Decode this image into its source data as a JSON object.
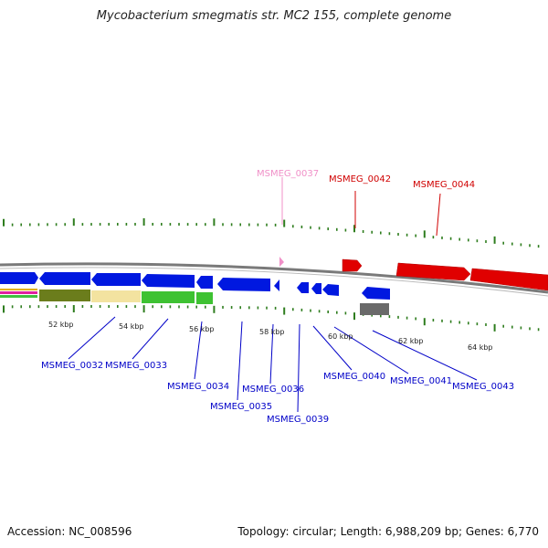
{
  "title": "Mycobacterium smegmatis str. MC2 155, complete genome",
  "footer": {
    "accession": "Accession: NC_008596",
    "summary": "Topology: circular; Length: 6,988,209 bp; Genes: 6,770"
  },
  "colors": {
    "backbone": "#7a7a7a",
    "tick": "#2e7d1e",
    "forward_gene": "#e00000",
    "reverse_gene": "#0018e0",
    "label_forward": "#d00000",
    "label_reverse": "#0000c8",
    "pink": "#f080c0"
  },
  "kbp_labels": [
    "52 kbp",
    "54 kbp",
    "56 kbp",
    "58 kbp",
    "60 kbp",
    "62 kbp",
    "64 kbp"
  ],
  "gene_labels_top": [
    {
      "id": "msmeg-0037",
      "text": "MSMEG_0037",
      "color": "#f090c8"
    },
    {
      "id": "msmeg-0042",
      "text": "MSMEG_0042",
      "color": "#d00000"
    },
    {
      "id": "msmeg-0044",
      "text": "MSMEG_0044",
      "color": "#d00000"
    }
  ],
  "gene_labels_bottom": [
    {
      "id": "msmeg-0032",
      "text": "MSMEG_0032"
    },
    {
      "id": "msmeg-0033",
      "text": "MSMEG_0033"
    },
    {
      "id": "msmeg-0034",
      "text": "MSMEG_0034"
    },
    {
      "id": "msmeg-0035",
      "text": "MSMEG_0035"
    },
    {
      "id": "msmeg-0036",
      "text": "MSMEG_0036"
    },
    {
      "id": "msmeg-0039",
      "text": "MSMEG_0039"
    },
    {
      "id": "msmeg-0040",
      "text": "MSMEG_0040"
    },
    {
      "id": "msmeg-0041",
      "text": "MSMEG_0041"
    },
    {
      "id": "msmeg-0043",
      "text": "MSMEG_0043"
    }
  ]
}
